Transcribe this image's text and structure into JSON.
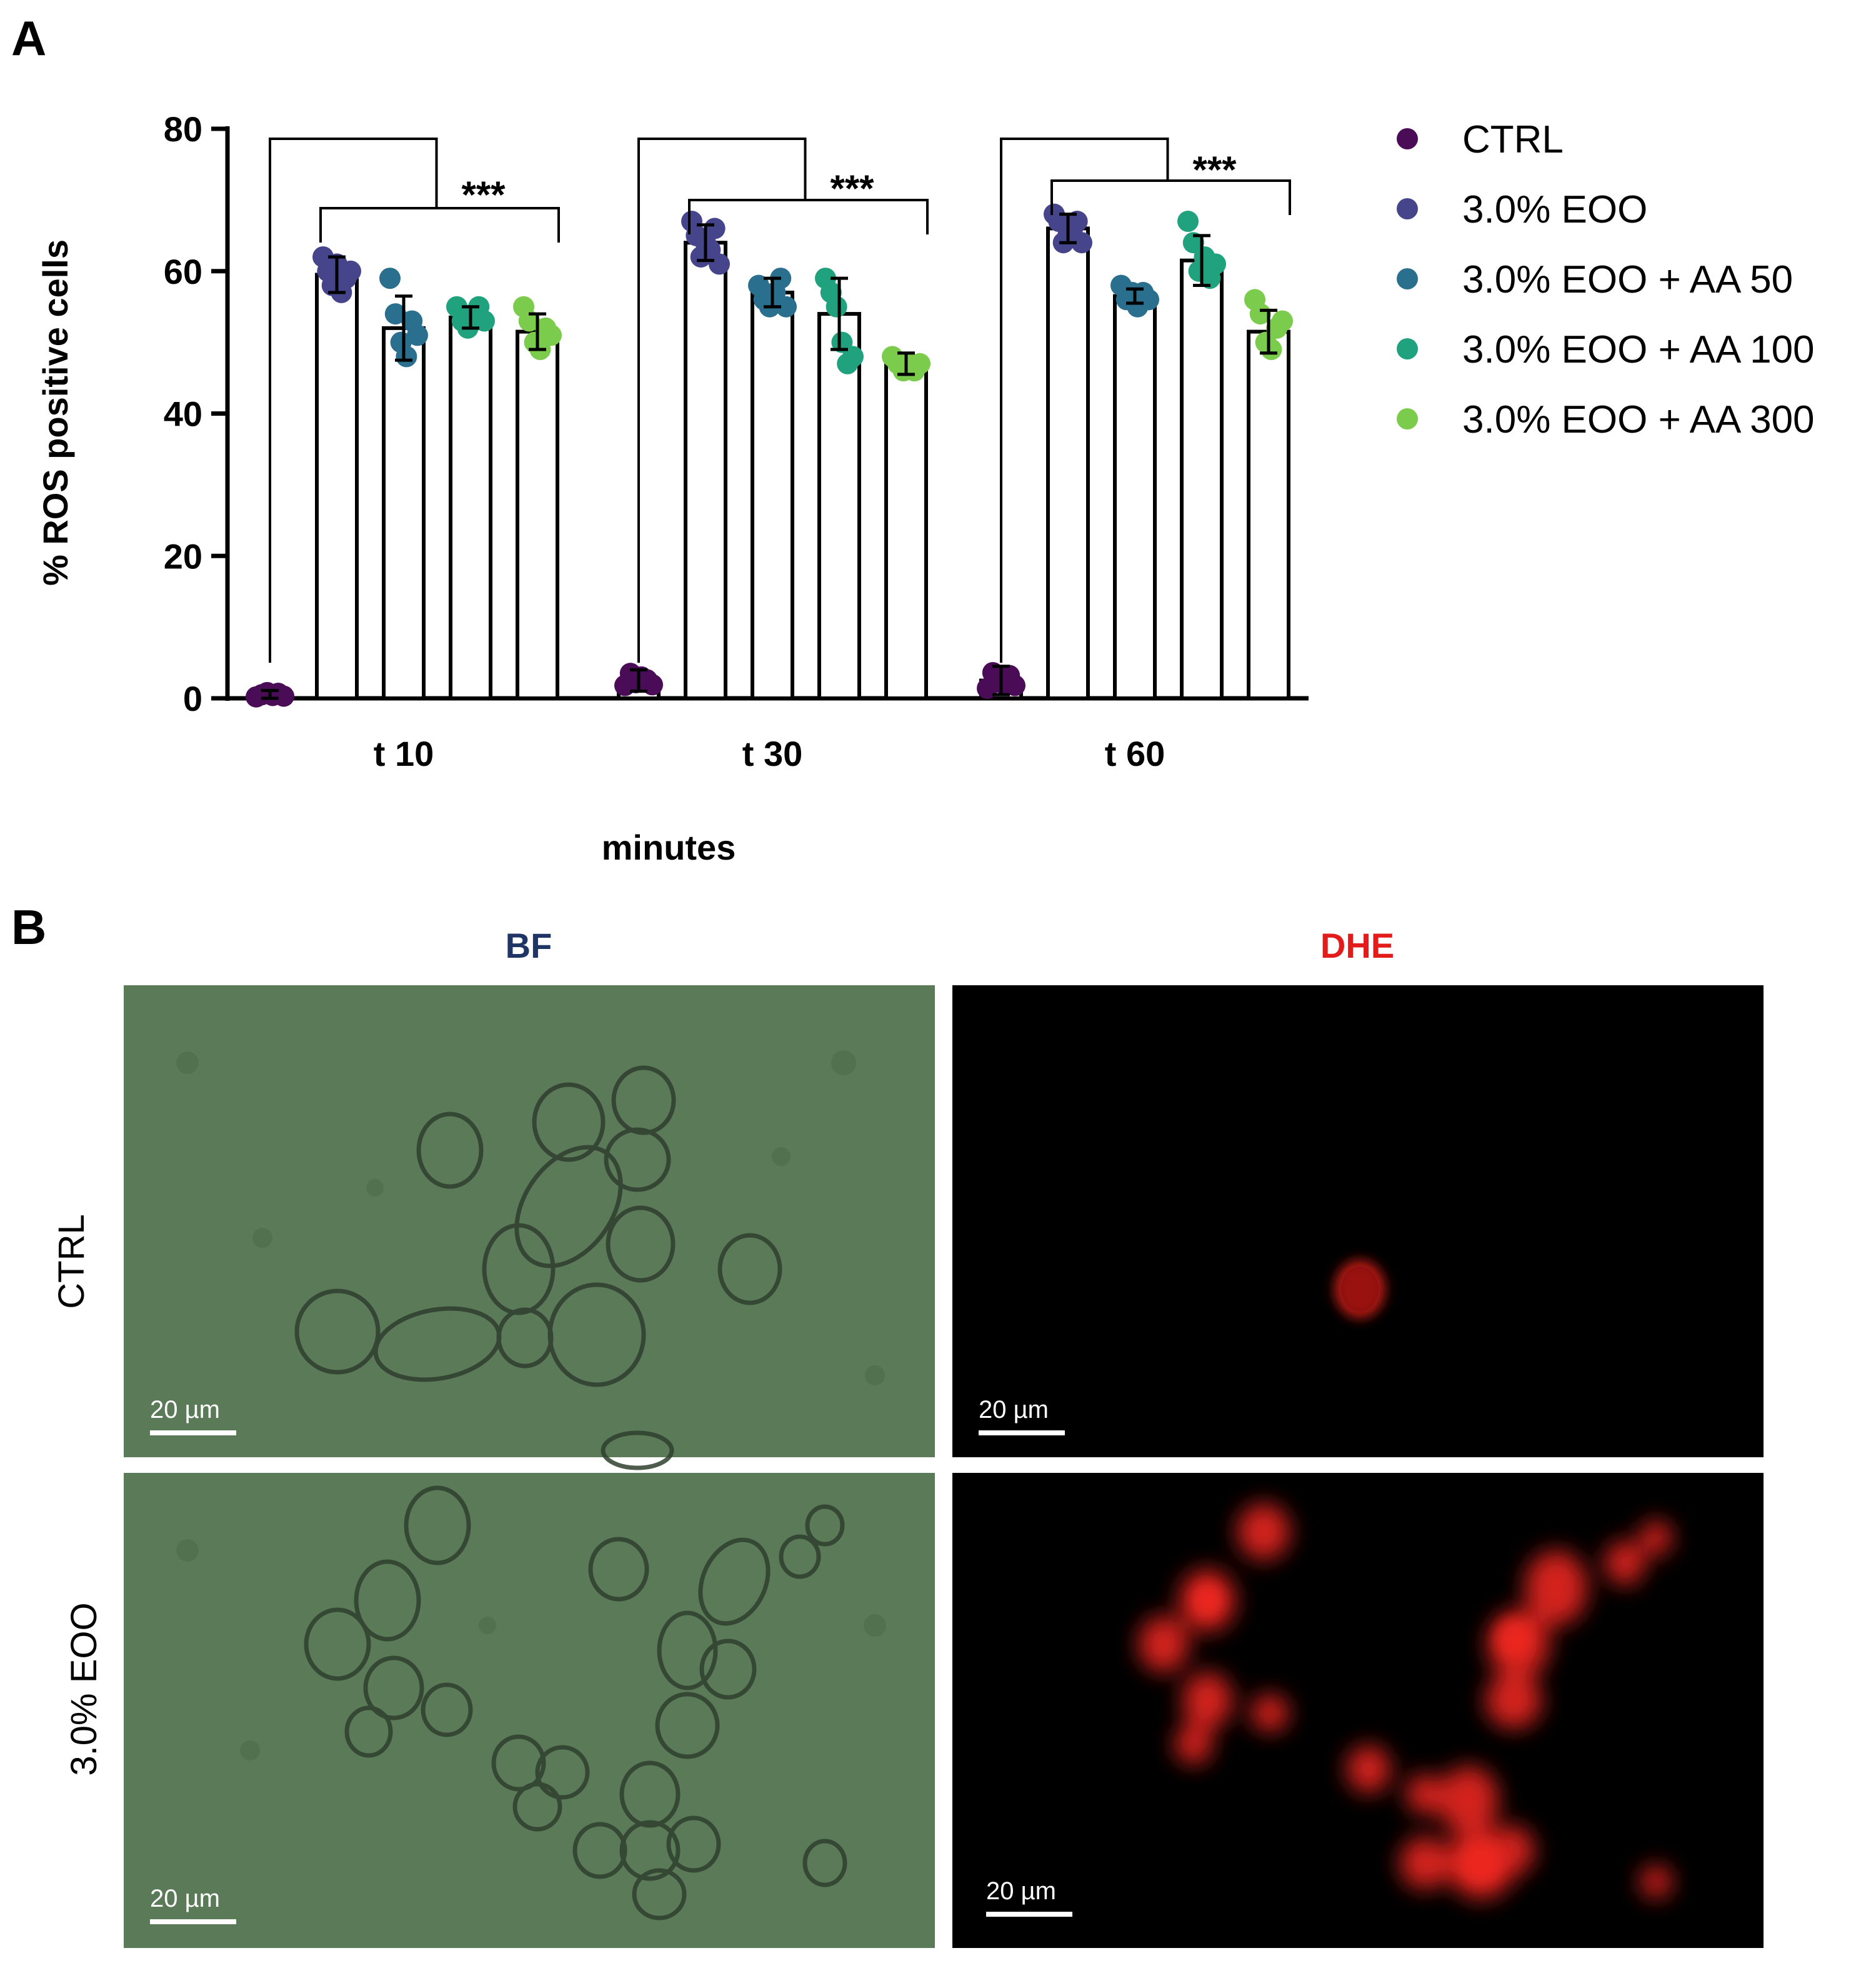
{
  "panel_a": {
    "letter": "A"
  },
  "panel_b": {
    "letter": "B",
    "column_titles": [
      "BF",
      "DHE"
    ],
    "column_title_colors": [
      "#1f3566",
      "#e21b1b"
    ],
    "row_labels": [
      "CTRL",
      "3.0% EOO"
    ],
    "scale_bar_label": "20 µm",
    "images": [
      {
        "row": "CTRL",
        "column": "BF",
        "content": "bright-field yeast cells"
      },
      {
        "row": "CTRL",
        "column": "DHE",
        "content": "dark field, one red fluorescent cell"
      },
      {
        "row": "3.0% EOO",
        "column": "BF",
        "content": "bright-field yeast cells"
      },
      {
        "row": "3.0% EOO",
        "column": "DHE",
        "content": "many red fluorescent cells"
      }
    ]
  },
  "chart_data": {
    "type": "bar",
    "xlabel": "minutes",
    "ylabel": "% ROS positive cells",
    "ylim": [
      0,
      80
    ],
    "yticks": [
      0,
      20,
      40,
      60,
      80
    ],
    "categories": [
      "t 10",
      "t 30",
      "t 60"
    ],
    "legend_position": "right",
    "significance": [
      "***",
      "***",
      "***"
    ],
    "series": [
      {
        "name": "CTRL",
        "color": "#4a0c57",
        "values": [
          0.5,
          2.5,
          2.5
        ],
        "errors": [
          0.6,
          1.5,
          2.0
        ],
        "points": [
          [
            0.2,
            0.5,
            0.8,
            0.4,
            0.7,
            0.3
          ],
          [
            1.8,
            3.5,
            2.2,
            3.0,
            2.6,
            1.9
          ],
          [
            1.4,
            3.6,
            2.8,
            2.0,
            3.2,
            1.8
          ]
        ]
      },
      {
        "name": "3.0% EOO",
        "color": "#46458c",
        "values": [
          59.5,
          64,
          66
        ],
        "errors": [
          2.5,
          2.5,
          2
        ],
        "points": [
          [
            62,
            60,
            58,
            61,
            57,
            59,
            60
          ],
          [
            67,
            65,
            62,
            64,
            63,
            66,
            61
          ],
          [
            68,
            67,
            64,
            65,
            66,
            67,
            64
          ]
        ]
      },
      {
        "name": "3.0% EOO + AA 50",
        "color": "#2a6f8e",
        "values": [
          52,
          57,
          56.5
        ],
        "errors": [
          4.5,
          2,
          1
        ],
        "points": [
          [
            59,
            54,
            50,
            48,
            53,
            51
          ],
          [
            58,
            56,
            55,
            57,
            59,
            55
          ],
          [
            58,
            56,
            57,
            55,
            57,
            56
          ]
        ]
      },
      {
        "name": "3.0% EOO + AA 100",
        "color": "#21a27f",
        "values": [
          53.5,
          54,
          61.5
        ],
        "errors": [
          1.5,
          5,
          3.5
        ],
        "points": [
          [
            55,
            53,
            52,
            54,
            55,
            53
          ],
          [
            59,
            57,
            55,
            50,
            47,
            48
          ],
          [
            67,
            64,
            60,
            62,
            59,
            61
          ]
        ]
      },
      {
        "name": "3.0% EOO + AA 300",
        "color": "#7bcc4c",
        "values": [
          51.5,
          47,
          51.5
        ],
        "errors": [
          2.5,
          1.5,
          3
        ],
        "points": [
          [
            55,
            53,
            50,
            49,
            52,
            51
          ],
          [
            48,
            47,
            46,
            47,
            46,
            47
          ],
          [
            56,
            54,
            50,
            49,
            52,
            53
          ]
        ]
      }
    ]
  }
}
